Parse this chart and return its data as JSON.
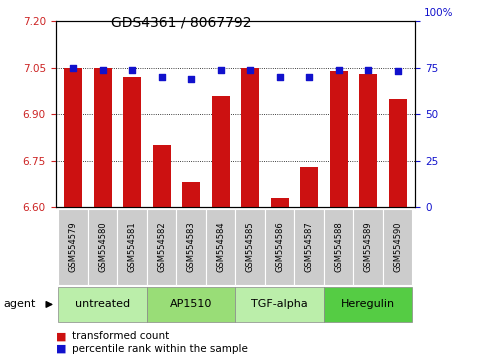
{
  "title": "GDS4361 / 8067792",
  "samples": [
    "GSM554579",
    "GSM554580",
    "GSM554581",
    "GSM554582",
    "GSM554583",
    "GSM554584",
    "GSM554585",
    "GSM554586",
    "GSM554587",
    "GSM554588",
    "GSM554589",
    "GSM554590"
  ],
  "bar_values": [
    7.05,
    7.05,
    7.02,
    6.8,
    6.68,
    6.96,
    7.05,
    6.63,
    6.73,
    7.04,
    7.03,
    6.95
  ],
  "percentile_values": [
    75,
    74,
    74,
    70,
    69,
    74,
    74,
    70,
    70,
    74,
    74,
    73
  ],
  "ymin": 6.6,
  "ymax": 7.2,
  "yright_min": 0,
  "yright_max": 100,
  "yticks_left": [
    6.6,
    6.75,
    6.9,
    7.05,
    7.2
  ],
  "yticks_right": [
    0,
    25,
    50,
    75,
    100
  ],
  "bar_color": "#cc1111",
  "dot_color": "#1111cc",
  "bar_width": 0.6,
  "groups": [
    {
      "label": "untreated",
      "start": 0,
      "end": 3,
      "color": "#bbeeaa"
    },
    {
      "label": "AP1510",
      "start": 3,
      "end": 6,
      "color": "#99dd77"
    },
    {
      "label": "TGF-alpha",
      "start": 6,
      "end": 9,
      "color": "#bbeeaa"
    },
    {
      "label": "Heregulin",
      "start": 9,
      "end": 12,
      "color": "#55cc44"
    }
  ],
  "agent_label": "agent",
  "legend_items": [
    {
      "label": "transformed count",
      "color": "#cc1111"
    },
    {
      "label": "percentile rank within the sample",
      "color": "#1111cc"
    }
  ],
  "sample_box_color": "#cccccc",
  "title_fontsize": 10,
  "tick_fontsize": 7.5,
  "sample_fontsize": 6,
  "group_fontsize": 8,
  "legend_fontsize": 7.5
}
